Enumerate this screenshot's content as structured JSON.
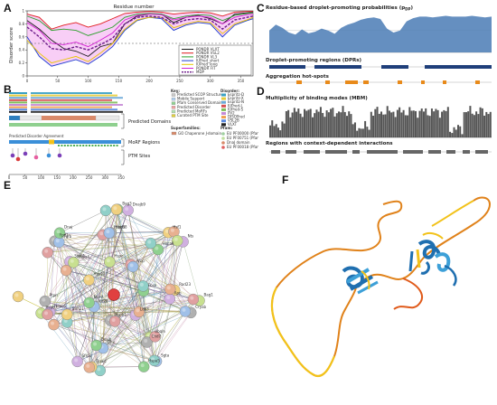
{
  "panels": {
    "A": "A",
    "B": "B",
    "C": "C",
    "D": "D",
    "E": "E",
    "F": "F"
  },
  "panelA": {
    "ylabel": "Disorder score",
    "xlabel": "Residue number",
    "xticks": [
      "0",
      "50",
      "100",
      "150",
      "200",
      "250",
      "300",
      "350"
    ],
    "yticks": [
      "0",
      "0.2",
      "0.4",
      "0.6",
      "0.8",
      "1"
    ],
    "legend": [
      "PONDR VLXT",
      "PONDR VSL2",
      "PONDR VL3",
      "IUPred_short",
      "IUPred_long",
      "PONDR FIT",
      "MDP"
    ],
    "colors": {
      "vlxt": "#1a1a1a",
      "vsl2": "#e0191b",
      "vl3": "#2aa02a",
      "iu_short": "#1f3fd0",
      "iu_long": "#e6c800",
      "fit": "#d21fd2",
      "mdp": "#6d1a8a",
      "band": "#f2a6ee"
    }
  },
  "chart_data": {
    "type": "line",
    "xlabel": "Residue number",
    "ylabel": "Disorder score",
    "xlim": [
      0,
      370
    ],
    "ylim": [
      0,
      1
    ],
    "x": [
      0,
      20,
      40,
      60,
      80,
      100,
      120,
      140,
      160,
      180,
      200,
      220,
      240,
      260,
      280,
      300,
      320,
      340,
      360,
      370
    ],
    "series": [
      {
        "name": "PONDR VLXT",
        "values": [
          0.85,
          0.72,
          0.55,
          0.42,
          0.38,
          0.3,
          0.45,
          0.5,
          0.8,
          0.92,
          0.95,
          0.95,
          0.82,
          0.9,
          0.93,
          0.88,
          0.8,
          0.95,
          0.97,
          0.98
        ]
      },
      {
        "name": "PONDR VSL2",
        "values": [
          0.95,
          0.9,
          0.72,
          0.78,
          0.82,
          0.75,
          0.8,
          0.88,
          0.96,
          0.98,
          0.99,
          0.98,
          0.95,
          0.97,
          0.98,
          0.97,
          0.92,
          0.98,
          0.99,
          0.99
        ]
      },
      {
        "name": "PONDR VL3",
        "values": [
          0.92,
          0.85,
          0.7,
          0.72,
          0.7,
          0.62,
          0.68,
          0.75,
          0.9,
          0.95,
          0.96,
          0.95,
          0.88,
          0.92,
          0.94,
          0.93,
          0.85,
          0.93,
          0.96,
          0.97
        ]
      },
      {
        "name": "IUPred_short",
        "values": [
          0.6,
          0.3,
          0.15,
          0.2,
          0.25,
          0.18,
          0.3,
          0.45,
          0.7,
          0.85,
          0.9,
          0.88,
          0.7,
          0.78,
          0.82,
          0.8,
          0.6,
          0.78,
          0.85,
          0.88
        ]
      },
      {
        "name": "IUPred_long",
        "values": [
          0.55,
          0.35,
          0.2,
          0.25,
          0.3,
          0.22,
          0.35,
          0.5,
          0.72,
          0.86,
          0.9,
          0.9,
          0.74,
          0.8,
          0.84,
          0.82,
          0.65,
          0.8,
          0.86,
          0.9
        ]
      },
      {
        "name": "PONDR FIT",
        "values": [
          0.82,
          0.7,
          0.5,
          0.48,
          0.52,
          0.45,
          0.55,
          0.66,
          0.86,
          0.93,
          0.95,
          0.94,
          0.86,
          0.9,
          0.92,
          0.9,
          0.8,
          0.9,
          0.94,
          0.95
        ]
      },
      {
        "name": "MDP",
        "values": [
          0.75,
          0.6,
          0.42,
          0.4,
          0.45,
          0.4,
          0.48,
          0.58,
          0.8,
          0.9,
          0.92,
          0.9,
          0.8,
          0.86,
          0.88,
          0.86,
          0.72,
          0.86,
          0.9,
          0.92
        ]
      }
    ],
    "threshold": 0.5,
    "legend_position": "bottom-right",
    "grid": false
  },
  "panelB": {
    "track_labels": [
      "Predicted Domains",
      "MoRF Regions",
      "PTM Sites"
    ],
    "track_top": "Predicted Disorder Agreement",
    "key_title": "Key:",
    "key_items": [
      "Predicted SCOP Structure",
      "Mobile Support",
      "Pfam Conserved Domain",
      "Predicted Disorder",
      "Predicted MoRFs",
      "Curated PTM Site"
    ],
    "disorder_title": "Disorder:",
    "disorder_items": [
      "Espritz-D",
      "Espritz-X",
      "Espritz-N",
      "IUPred-L",
      "IUPred-S",
      "PV2",
      "DISOPred",
      "VSL2B",
      "VLXT"
    ],
    "superfamilies_title": "Superfamilies:",
    "superfamilies": [
      "GO Chaperone J-domain"
    ],
    "pfam_title": "Pfam:",
    "pfam_items": [
      "EU PF00000 (Pfam-B)",
      "EU PF00751 (Pfam-B)",
      "DnaJ domain",
      "EU PF00018 (Pfam-B)"
    ],
    "axis_ticks": [
      "0",
      "50",
      "100",
      "150",
      "200",
      "250",
      "300",
      "350"
    ]
  },
  "panelC": {
    "title1": "Residue-based droplet-promoting probabilities (p",
    "title1_sub": "DP",
    "title1_end": ")",
    "title2": "Droplet-promoting regions (DPRs)",
    "title3": "Aggregation hot-spots"
  },
  "panelD": {
    "title1": "Multiplicity of binding modes (MBM)",
    "title2": "Regions with context-dependent interactions"
  },
  "panelE": {
    "nodes": [
      "Fbxo",
      "Ldb3",
      "Hspb1",
      "Nsmf",
      "Stub1",
      "Hspb8",
      "Hspa8",
      "App",
      "Chd7",
      "Dnajb",
      "Hdac6",
      "Ypd1",
      "Bag3",
      "Nts",
      "Cryab",
      "Hspa5",
      "Sfrp1",
      "Ptpn",
      "Dnaj",
      "Dnajb9",
      "Kif28",
      "Hsp90",
      "Hspe",
      "Vcp",
      "Rad23",
      "Ubqln",
      "Dhx",
      "Trim21",
      "Hspa4",
      "Hspd1",
      "Hsf1",
      "Bag1",
      "Sgta",
      "Dnajc",
      "Hspb7",
      "Tgfb"
    ]
  },
  "panelF": {
    "description": "structure"
  }
}
